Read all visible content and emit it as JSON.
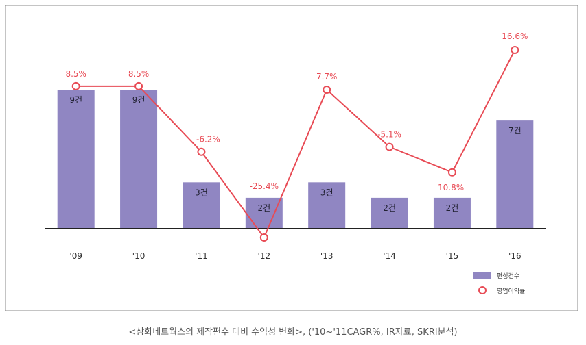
{
  "chart_data": {
    "type": "bar+line",
    "categories": [
      "'09",
      "'10",
      "'11",
      "'12",
      "'13",
      "'14",
      "'15",
      "'16"
    ],
    "series": [
      {
        "name": "편성건수",
        "type": "bar",
        "values": [
          9,
          9,
          3,
          2,
          3,
          2,
          2,
          7
        ],
        "labels": [
          "9건",
          "9건",
          "3건",
          "2건",
          "3건",
          "2건",
          "2건",
          "7건"
        ]
      },
      {
        "name": "영업이익률",
        "type": "line",
        "values": [
          8.5,
          8.5,
          -6.2,
          -25.4,
          7.7,
          -5.1,
          -10.8,
          16.6
        ],
        "labels": [
          "8.5%",
          "8.5%",
          "-6.2%",
          "-25.4%",
          "7.7%",
          "-5.1%",
          "-10.8%",
          "16.6%"
        ]
      }
    ],
    "bar_ylim": [
      0,
      9.5
    ],
    "line_ylim": [
      -27,
      20
    ],
    "legend_position": "bottom-right",
    "grid": false
  },
  "colors": {
    "bar": "#9086c2",
    "line": "#e84b55",
    "axis": "#222222",
    "frame": "#888888"
  },
  "caption": "<삼화네트웍스의 제작편수 대비 수익성 변화>, ('10~'11CAGR%, IR자료, SKRI분석)"
}
